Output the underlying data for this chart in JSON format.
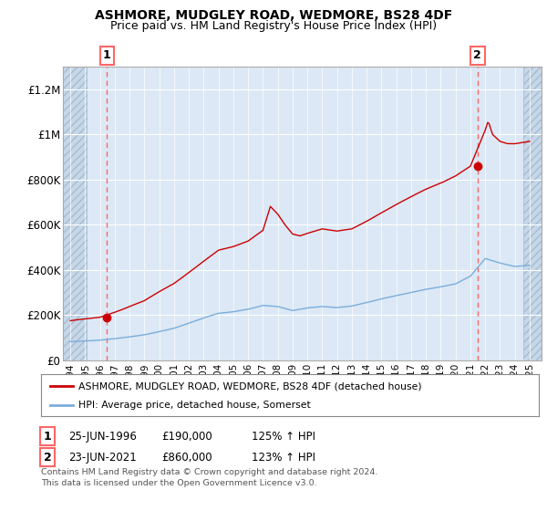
{
  "title": "ASHMORE, MUDGLEY ROAD, WEDMORE, BS28 4DF",
  "subtitle": "Price paid vs. HM Land Registry's House Price Index (HPI)",
  "title_fontsize": 10,
  "subtitle_fontsize": 9,
  "ylim": [
    0,
    1300000
  ],
  "xlim": [
    1993.5,
    2025.8
  ],
  "yticks": [
    0,
    200000,
    400000,
    600000,
    800000,
    1000000,
    1200000
  ],
  "ytick_labels": [
    "£0",
    "£200K",
    "£400K",
    "£600K",
    "£800K",
    "£1M",
    "£1.2M"
  ],
  "xticks": [
    1994,
    1995,
    1996,
    1997,
    1998,
    1999,
    2000,
    2001,
    2002,
    2003,
    2004,
    2005,
    2006,
    2007,
    2008,
    2009,
    2010,
    2011,
    2012,
    2013,
    2014,
    2015,
    2016,
    2017,
    2018,
    2019,
    2020,
    2021,
    2022,
    2023,
    2024,
    2025
  ],
  "red_line_color": "#cc0000",
  "blue_line_color": "#7aaddb",
  "vline_color": "#ff6666",
  "marker_color": "#cc0000",
  "background_color": "#ffffff",
  "plot_bg_color": "#dce8f5",
  "grid_color": "#ffffff",
  "sale1_x": 1996.48,
  "sale1_y": 190000,
  "sale1_label": "1",
  "sale2_x": 2021.48,
  "sale2_y": 860000,
  "sale2_label": "2",
  "hatch_left_end": 1995.08,
  "hatch_right_start": 2024.58,
  "legend_line1": "ASHMORE, MUDGLEY ROAD, WEDMORE, BS28 4DF (detached house)",
  "legend_line2": "HPI: Average price, detached house, Somerset",
  "ann1_num": "1",
  "ann1_date": "25-JUN-1996",
  "ann1_price": "£190,000",
  "ann1_hpi": "125% ↑ HPI",
  "ann2_num": "2",
  "ann2_date": "23-JUN-2021",
  "ann2_price": "£860,000",
  "ann2_hpi": "123% ↑ HPI",
  "footnote1": "Contains HM Land Registry data © Crown copyright and database right 2024.",
  "footnote2": "This data is licensed under the Open Government Licence v3.0."
}
